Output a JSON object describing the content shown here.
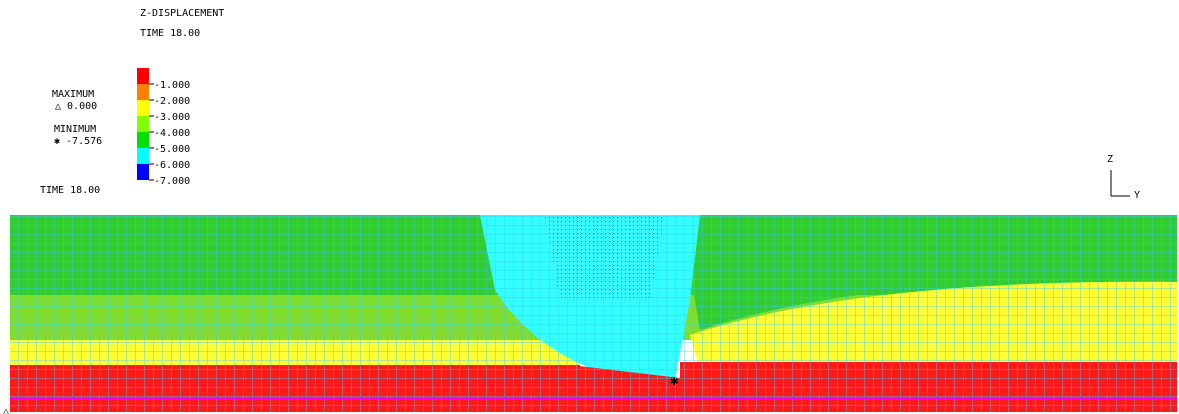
{
  "header": {
    "title": "Z-DISPLACEMENT",
    "time": "TIME 18.00"
  },
  "legend": {
    "max_label": "MAXIMUM",
    "max_value": "△ 0.000",
    "min_label": "MINIMUM",
    "min_value": "✱ -7.576",
    "time": "TIME 18.00",
    "levels": [
      "-1.000",
      "-2.000",
      "-3.000",
      "-4.000",
      "-5.000",
      "-6.000",
      "-7.000"
    ],
    "colors": [
      "#ff0000",
      "#ff8000",
      "#ffff00",
      "#80ff00",
      "#00e000",
      "#00ffff",
      "#0000ff"
    ]
  },
  "axes": {
    "z_label": "Z",
    "y_label": "Y"
  },
  "colors": {
    "red": "#ff1a1a",
    "yellow": "#ffff33",
    "lightgreen": "#66dd33",
    "green": "#33cc33",
    "cyan": "#33ffff",
    "blue": "#3366ff",
    "mesh": "#33ccff",
    "magenta": "#ff00ff"
  }
}
